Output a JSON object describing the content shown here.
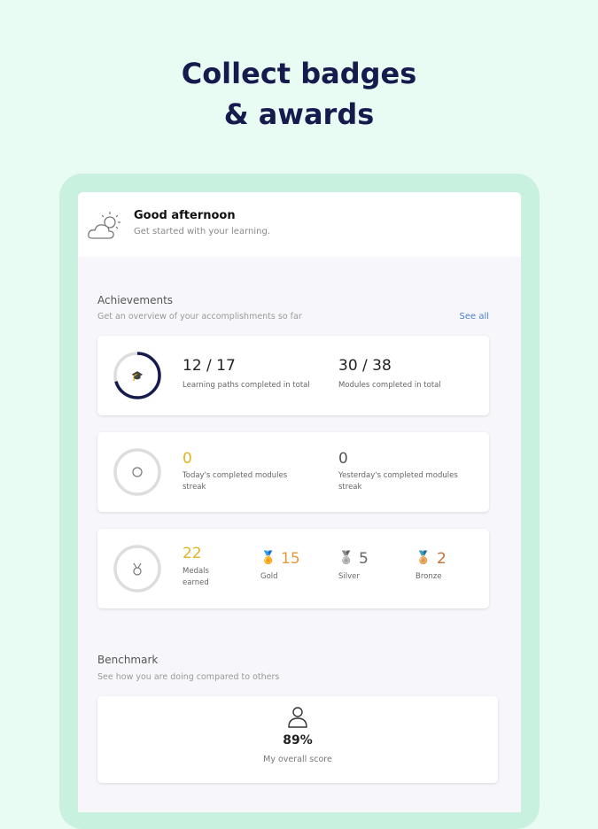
{
  "headline": {
    "line1": "Collect badges",
    "line2": "& awards"
  },
  "greeting": {
    "title": "Good afternoon",
    "subtitle": "Get started with your learning."
  },
  "achievements": {
    "title": "Achievements",
    "subtitle": "Get an overview of your accomplishments so far",
    "see_all": "See all",
    "paths": {
      "value": "12 / 17",
      "label": "Learning paths completed in total",
      "progress": 0.706
    },
    "modules": {
      "value": "30 / 38",
      "label": "Modules completed in total"
    },
    "today": {
      "value": "0",
      "label": "Today's completed modules streak"
    },
    "yesterday": {
      "value": "0",
      "label": "Yesterday's completed modules streak"
    },
    "medals": {
      "value": "22",
      "label": "Medals earned",
      "gold": "15",
      "gold_label": "Gold",
      "silver": "5",
      "silver_label": "Silver",
      "bronze": "2",
      "bronze_label": "Bronze"
    }
  },
  "benchmark": {
    "title": "Benchmark",
    "subtitle": "See how you are doing compared to others",
    "score": "89%",
    "score_label": "My overall score"
  },
  "colors": {
    "navy": "#161b4d",
    "gold": "#e0b424",
    "gold_medal": "#e39a3a",
    "silver": "#777",
    "bronze": "#c07238",
    "link": "#4a7fd4"
  }
}
